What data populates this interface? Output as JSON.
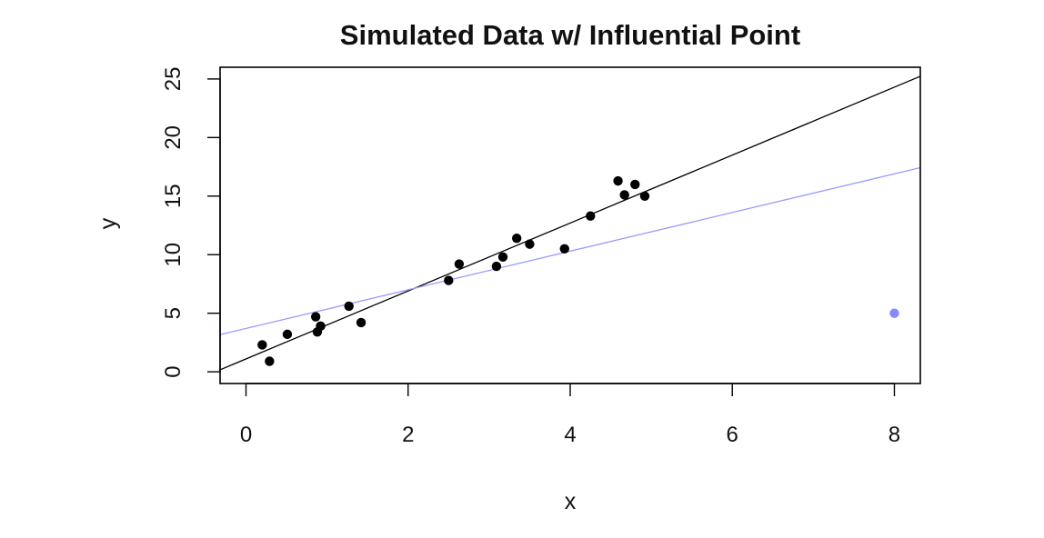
{
  "chart_data": {
    "type": "scatter",
    "title": "Simulated Data w/ Influential Point",
    "xlabel": "x",
    "ylabel": "y",
    "xlim": [
      -0.32,
      8.32
    ],
    "ylim": [
      -1.0,
      26.0
    ],
    "xticks": [
      0,
      2,
      4,
      6,
      8
    ],
    "yticks": [
      0,
      5,
      10,
      15,
      20,
      25
    ],
    "grid": false,
    "legend": "none",
    "series": [
      {
        "color": "#000000",
        "points": [
          [
            0.2,
            2.3
          ],
          [
            0.29,
            0.9
          ],
          [
            0.51,
            3.2
          ],
          [
            0.86,
            4.7
          ],
          [
            0.88,
            3.4
          ],
          [
            0.92,
            3.9
          ],
          [
            1.27,
            5.6
          ],
          [
            1.42,
            4.2
          ],
          [
            2.5,
            7.8
          ],
          [
            2.63,
            9.2
          ],
          [
            3.09,
            9.0
          ],
          [
            3.17,
            9.8
          ],
          [
            3.34,
            11.4
          ],
          [
            3.5,
            10.9
          ],
          [
            3.93,
            10.5
          ],
          [
            4.25,
            13.3
          ],
          [
            4.59,
            16.3
          ],
          [
            4.67,
            15.1
          ],
          [
            4.8,
            16.0
          ],
          [
            4.92,
            15.0
          ]
        ]
      },
      {
        "color": "#8888ff",
        "points": [
          [
            8.0,
            5.0
          ]
        ]
      }
    ],
    "lines": [
      {
        "color": "#000000",
        "intercept": 1.1,
        "slope": 2.9
      },
      {
        "color": "#9999ff",
        "intercept": 3.7,
        "slope": 1.65
      }
    ]
  }
}
